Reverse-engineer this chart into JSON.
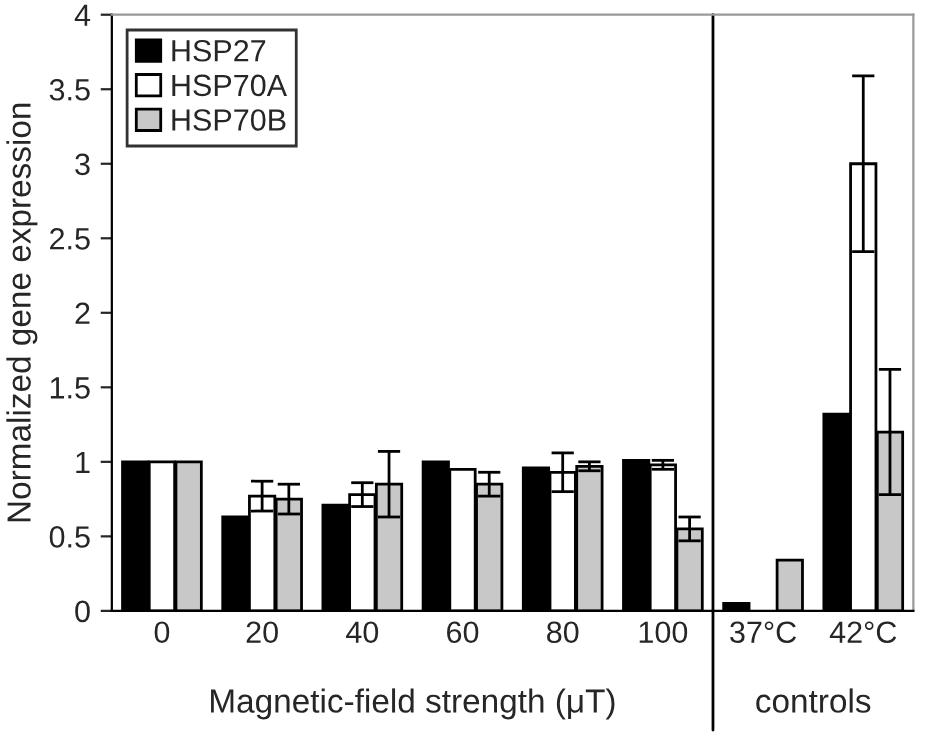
{
  "chart_data": {
    "type": "bar",
    "categories": [
      "0",
      "20",
      "40",
      "60",
      "80",
      "100",
      "37°C",
      "42°C"
    ],
    "xlabel": "Magnetic-field strength (μT)",
    "ylabel": "Normalized gene expression",
    "annotations": [
      "controls"
    ],
    "series": [
      {
        "name": "HSP27",
        "color": "#000000",
        "values": [
          1,
          0.63,
          0.71,
          1.0,
          0.96,
          1.01,
          0.05,
          1.32
        ],
        "errors": [
          null,
          null,
          null,
          null,
          null,
          null,
          null,
          null
        ]
      },
      {
        "name": "HSP70A",
        "color": "#ffffff",
        "values": [
          1,
          0.77,
          0.78,
          0.95,
          0.93,
          0.98,
          null,
          3.0
        ],
        "errors": [
          null,
          0.1,
          0.08,
          null,
          0.13,
          0.03,
          null,
          0.59
        ]
      },
      {
        "name": "HSP70B",
        "color": "#c8c8c8",
        "values": [
          1,
          0.75,
          0.85,
          0.85,
          0.97,
          0.55,
          0.34,
          1.2
        ],
        "errors": [
          null,
          0.1,
          0.22,
          0.08,
          0.03,
          0.08,
          null,
          0.42
        ]
      }
    ],
    "ylim": [
      0,
      4
    ],
    "yticks": [
      0,
      0.5,
      1,
      1.5,
      2,
      2.5,
      3,
      3.5,
      4
    ],
    "legend": "top left",
    "grid": false
  }
}
